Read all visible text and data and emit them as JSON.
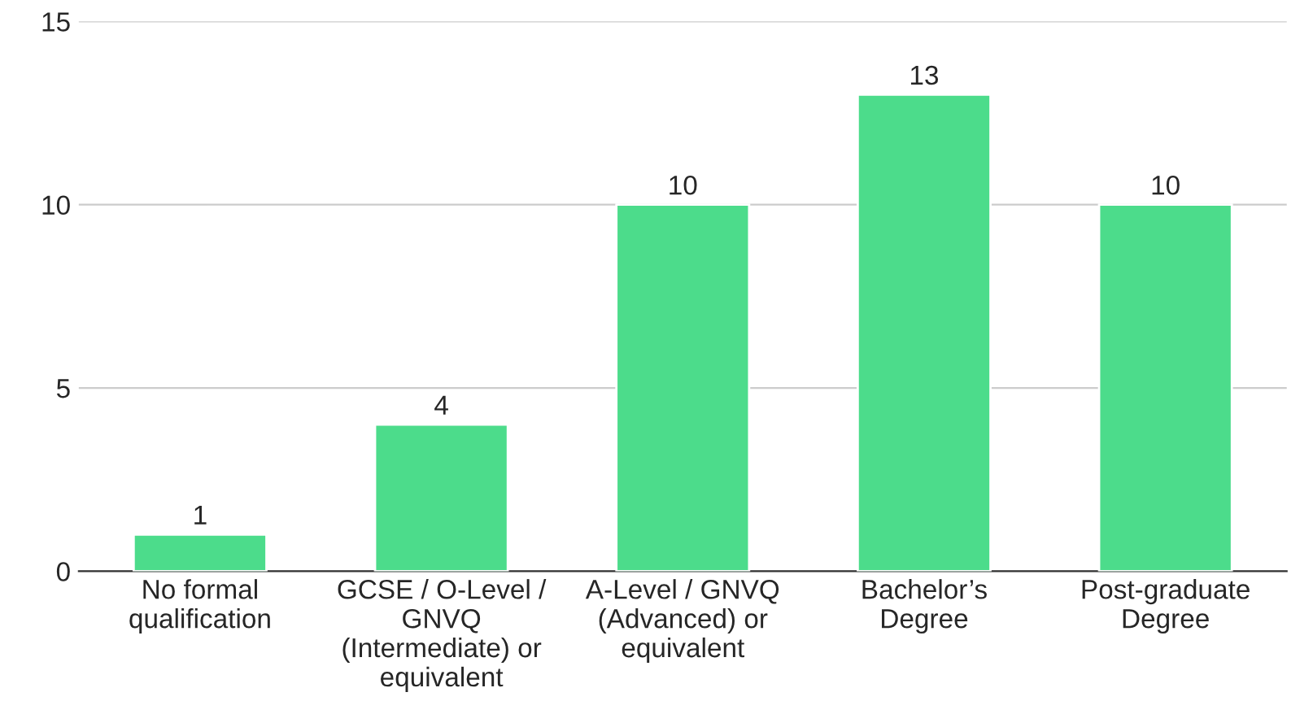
{
  "chart_data": {
    "type": "bar",
    "categories": [
      "No formal\nqualification",
      "GCSE / O-Level /\nGNVQ\n(Intermediate) or\nequivalent",
      "A-Level / GNVQ\n(Advanced) or\nequivalent",
      "Bachelor’s\nDegree",
      "Post-graduate\nDegree"
    ],
    "values": [
      1,
      4,
      10,
      13,
      10
    ],
    "color": "#4cdc8b",
    "ylim": [
      0,
      15
    ],
    "yticks": [
      0,
      5,
      10,
      15
    ],
    "grid": "y",
    "data_labels": true
  }
}
